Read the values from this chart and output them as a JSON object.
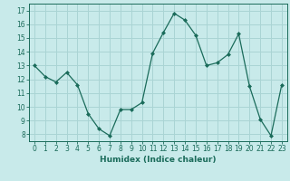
{
  "x": [
    0,
    1,
    2,
    3,
    4,
    5,
    6,
    7,
    8,
    9,
    10,
    11,
    12,
    13,
    14,
    15,
    16,
    17,
    18,
    19,
    20,
    21,
    22,
    23
  ],
  "y": [
    13.0,
    12.2,
    11.8,
    12.5,
    11.6,
    9.5,
    8.4,
    7.9,
    9.8,
    9.8,
    10.3,
    13.9,
    15.4,
    16.8,
    16.3,
    15.2,
    13.0,
    13.2,
    13.8,
    15.3,
    11.5,
    9.1,
    7.9,
    11.6
  ],
  "line_color": "#1a6b5a",
  "marker": "D",
  "marker_size": 2.0,
  "bg_color": "#c8eaea",
  "grid_color": "#aad4d4",
  "xlabel": "Humidex (Indice chaleur)",
  "xlim": [
    -0.5,
    23.5
  ],
  "ylim": [
    7.5,
    17.5
  ],
  "yticks": [
    8,
    9,
    10,
    11,
    12,
    13,
    14,
    15,
    16,
    17
  ],
  "xticks": [
    0,
    1,
    2,
    3,
    4,
    5,
    6,
    7,
    8,
    9,
    10,
    11,
    12,
    13,
    14,
    15,
    16,
    17,
    18,
    19,
    20,
    21,
    22,
    23
  ],
  "tick_fontsize": 5.5,
  "xlabel_fontsize": 6.5,
  "linewidth": 0.9
}
